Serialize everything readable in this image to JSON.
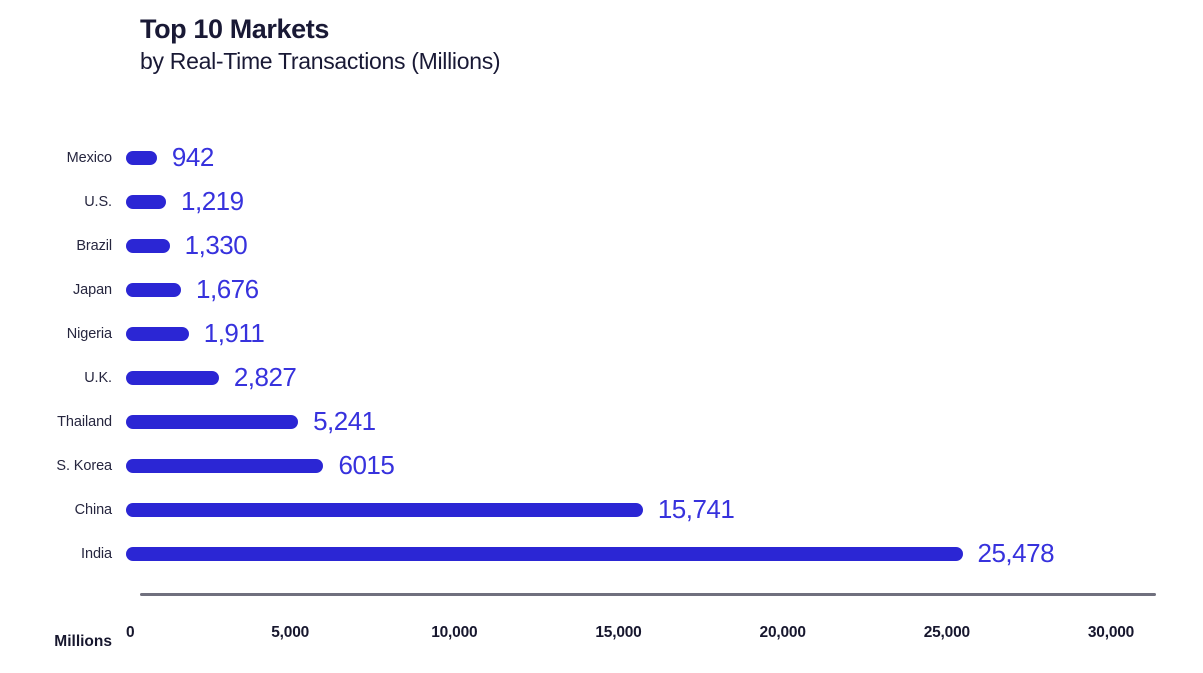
{
  "chart_data": {
    "type": "bar",
    "orientation": "horizontal",
    "title": "Top 10 Markets",
    "subtitle": "by Real-Time Transactions (Millions)",
    "categories": [
      "Mexico",
      "U.S.",
      "Brazil",
      "Japan",
      "Nigeria",
      "U.K.",
      "Thailand",
      "S. Korea",
      "China",
      "India"
    ],
    "values": [
      942,
      1219,
      1330,
      1676,
      1911,
      2827,
      5241,
      6015,
      15741,
      25478
    ],
    "value_labels": [
      "942",
      "1,219",
      "1,330",
      "1,676",
      "1,911",
      "2,827",
      "5,241",
      "6015",
      "15,741",
      "25,478"
    ],
    "xlabel": "Millions",
    "xlim": [
      0,
      30000
    ],
    "x_ticks": [
      "0",
      "5,000",
      "10,000",
      "15,000",
      "20,000",
      "25,000",
      "30,000"
    ],
    "x_tick_values": [
      0,
      5000,
      10000,
      15000,
      20000,
      25000,
      30000
    ],
    "grid": false,
    "legend": "none",
    "colors": {
      "bar": "#2b26d4",
      "value_text": "#3732dd",
      "category_text": "#26263f",
      "title_text": "#191935",
      "axis_line": "#70707e",
      "tick_text": "#17172e",
      "background": "#ffffff"
    }
  }
}
